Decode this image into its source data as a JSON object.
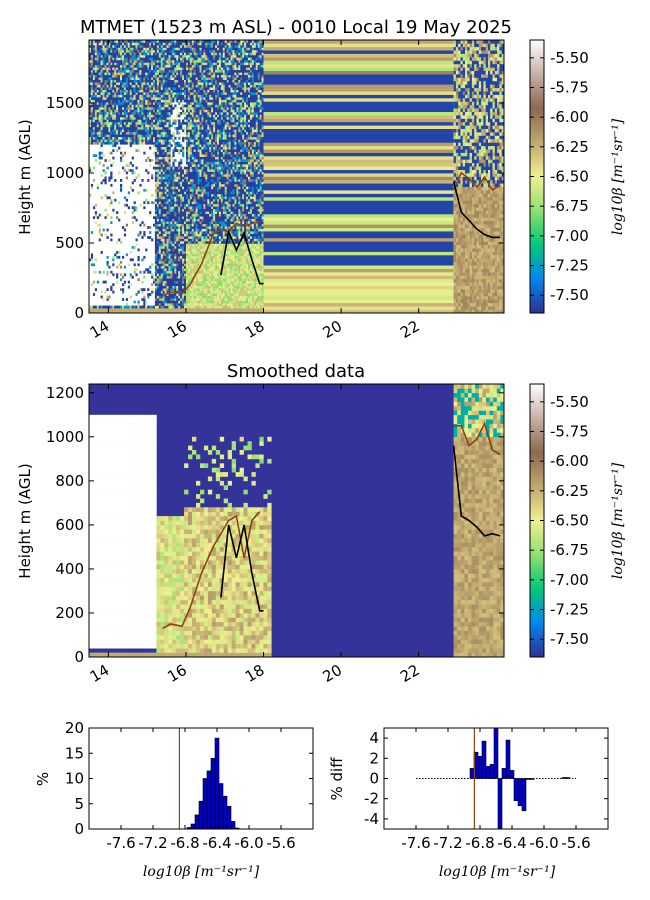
{
  "figure": {
    "title_top": "MTMET (1523 m ASL) - 0010 Local 19 May 2025",
    "title_mid": "Smoothed data",
    "ylabel": "Height m (AGL)",
    "colorbar_label": "log10β [m⁻¹sr⁻¹]",
    "colorbar_ticks": [
      "-5.50",
      "-5.75",
      "-6.00",
      "-6.25",
      "-6.50",
      "-6.75",
      "-7.00",
      "-7.25",
      "-7.50"
    ],
    "xlabel_hist": "log10β [m⁻¹sr⁻¹]",
    "hist_ylabel_left": "%",
    "hist_ylabel_right": "% diff"
  },
  "colors": {
    "cmap": [
      "#303090",
      "#0088ee",
      "#00c878",
      "#90e070",
      "#f0f090",
      "#c0a870",
      "#8a6a50",
      "#c8b0a8",
      "#ffffff"
    ],
    "background_fill": "#333399",
    "brown_line": "#8b4513",
    "black_line": "#000000",
    "hist_bar": "#0000cc"
  },
  "chart_data": [
    {
      "type": "heatmap",
      "title": "MTMET (1523 m ASL) - 0010 Local 19 May 2025",
      "ylabel": "Height m (AGL)",
      "xlim": [
        13.5,
        24.2
      ],
      "ylim": [
        0,
        1950
      ],
      "xticks": [
        14,
        16,
        18,
        20,
        22
      ],
      "yticks": [
        0,
        500,
        1000,
        1500
      ],
      "clim": [
        -7.65,
        -5.35
      ],
      "brown_line": {
        "x": [
          15.4,
          15.6,
          15.9,
          16.1,
          16.4,
          16.7,
          16.9,
          17.1,
          17.3,
          17.5,
          17.7,
          17.9,
          22.9,
          23.1,
          23.3,
          23.5,
          23.7,
          23.9,
          24.1
        ],
        "y": [
          120,
          150,
          140,
          200,
          350,
          560,
          600,
          580,
          640,
          620,
          640,
          650,
          880,
          1000,
          960,
          900,
          970,
          880,
          910
        ]
      },
      "black_line": {
        "x": [
          16.9,
          17.1,
          17.3,
          17.5,
          17.7,
          17.9,
          18.0,
          22.9,
          23.1,
          23.3,
          23.5,
          23.7,
          23.9,
          24.1
        ],
        "y": [
          270,
          580,
          450,
          570,
          380,
          210,
          210,
          940,
          720,
          660,
          600,
          560,
          540,
          540
        ]
      }
    },
    {
      "type": "heatmap",
      "title": "Smoothed data",
      "ylabel": "Height m (AGL)",
      "xlim": [
        13.5,
        24.2
      ],
      "ylim": [
        0,
        1240
      ],
      "xticks": [
        14,
        16,
        18,
        20,
        22
      ],
      "yticks": [
        0,
        200,
        400,
        600,
        800,
        1000,
        1200
      ],
      "clim": [
        -7.65,
        -5.35
      ],
      "brown_line": {
        "x": [
          15.4,
          15.6,
          15.9,
          16.1,
          16.4,
          16.7,
          16.9,
          17.1,
          17.3,
          17.5,
          17.7,
          17.9,
          22.9,
          23.1,
          23.3,
          23.5,
          23.7,
          23.9,
          24.1
        ],
        "y": [
          130,
          150,
          140,
          220,
          380,
          500,
          560,
          620,
          640,
          450,
          620,
          660,
          1050,
          1050,
          960,
          990,
          1060,
          940,
          920
        ]
      },
      "black_line": {
        "x": [
          16.9,
          17.1,
          17.3,
          17.5,
          17.7,
          17.9,
          18.0,
          22.9,
          23.1,
          23.3,
          23.5,
          23.7,
          23.9,
          24.1
        ],
        "y": [
          270,
          600,
          450,
          600,
          380,
          210,
          210,
          960,
          640,
          620,
          590,
          550,
          560,
          550
        ]
      }
    },
    {
      "type": "bar",
      "title": "",
      "xlabel": "log10β [m⁻¹sr⁻¹]",
      "ylabel": "%",
      "xlim": [
        -8.0,
        -5.2
      ],
      "ylim": [
        0,
        20
      ],
      "xticks": [
        -7.6,
        -7.2,
        -6.8,
        -6.4,
        -6.0,
        -5.6
      ],
      "xticklabels": [
        "-7.6",
        "-7.2",
        "-6.8",
        "-6.4",
        "-6.0",
        "-5.6"
      ],
      "yticks": [
        0,
        5,
        10,
        15,
        20
      ],
      "bin_width": 0.05,
      "x": [
        -6.75,
        -6.7,
        -6.65,
        -6.6,
        -6.55,
        -6.5,
        -6.45,
        -6.4,
        -6.35,
        -6.3,
        -6.25,
        -6.2,
        -6.15
      ],
      "values": [
        0.3,
        1.0,
        2.8,
        5.5,
        10.0,
        11.5,
        14.0,
        18.0,
        9.0,
        6.5,
        4.5,
        1.5,
        0.2
      ],
      "vline": -6.87
    },
    {
      "type": "bar",
      "title": "",
      "xlabel": "log10β [m⁻¹sr⁻¹]",
      "ylabel": "% diff",
      "xlim": [
        -8.0,
        -5.2
      ],
      "ylim": [
        -5,
        5
      ],
      "xticks": [
        -7.6,
        -7.2,
        -6.8,
        -6.4,
        -6.0,
        -5.6
      ],
      "xticklabels": [
        "-7.6",
        "-7.2",
        "-6.8",
        "-6.4",
        "-6.0",
        "-5.6"
      ],
      "yticks": [
        4,
        2,
        0,
        -2,
        -4
      ],
      "bin_width": 0.05,
      "x": [
        -6.9,
        -6.85,
        -6.8,
        -6.75,
        -6.7,
        -6.65,
        -6.6,
        -6.55,
        -6.5,
        -6.45,
        -6.4,
        -6.35,
        -6.3,
        -6.25,
        -6.2,
        -6.15,
        -5.75,
        -5.7
      ],
      "values": [
        1.0,
        2.6,
        2.2,
        3.7,
        1.2,
        1.4,
        5.0,
        -5.0,
        1.0,
        3.8,
        0.8,
        -2.2,
        -2.7,
        -3.2,
        -0.1,
        -0.1,
        0.1,
        0.1
      ],
      "vline": -6.87
    }
  ]
}
